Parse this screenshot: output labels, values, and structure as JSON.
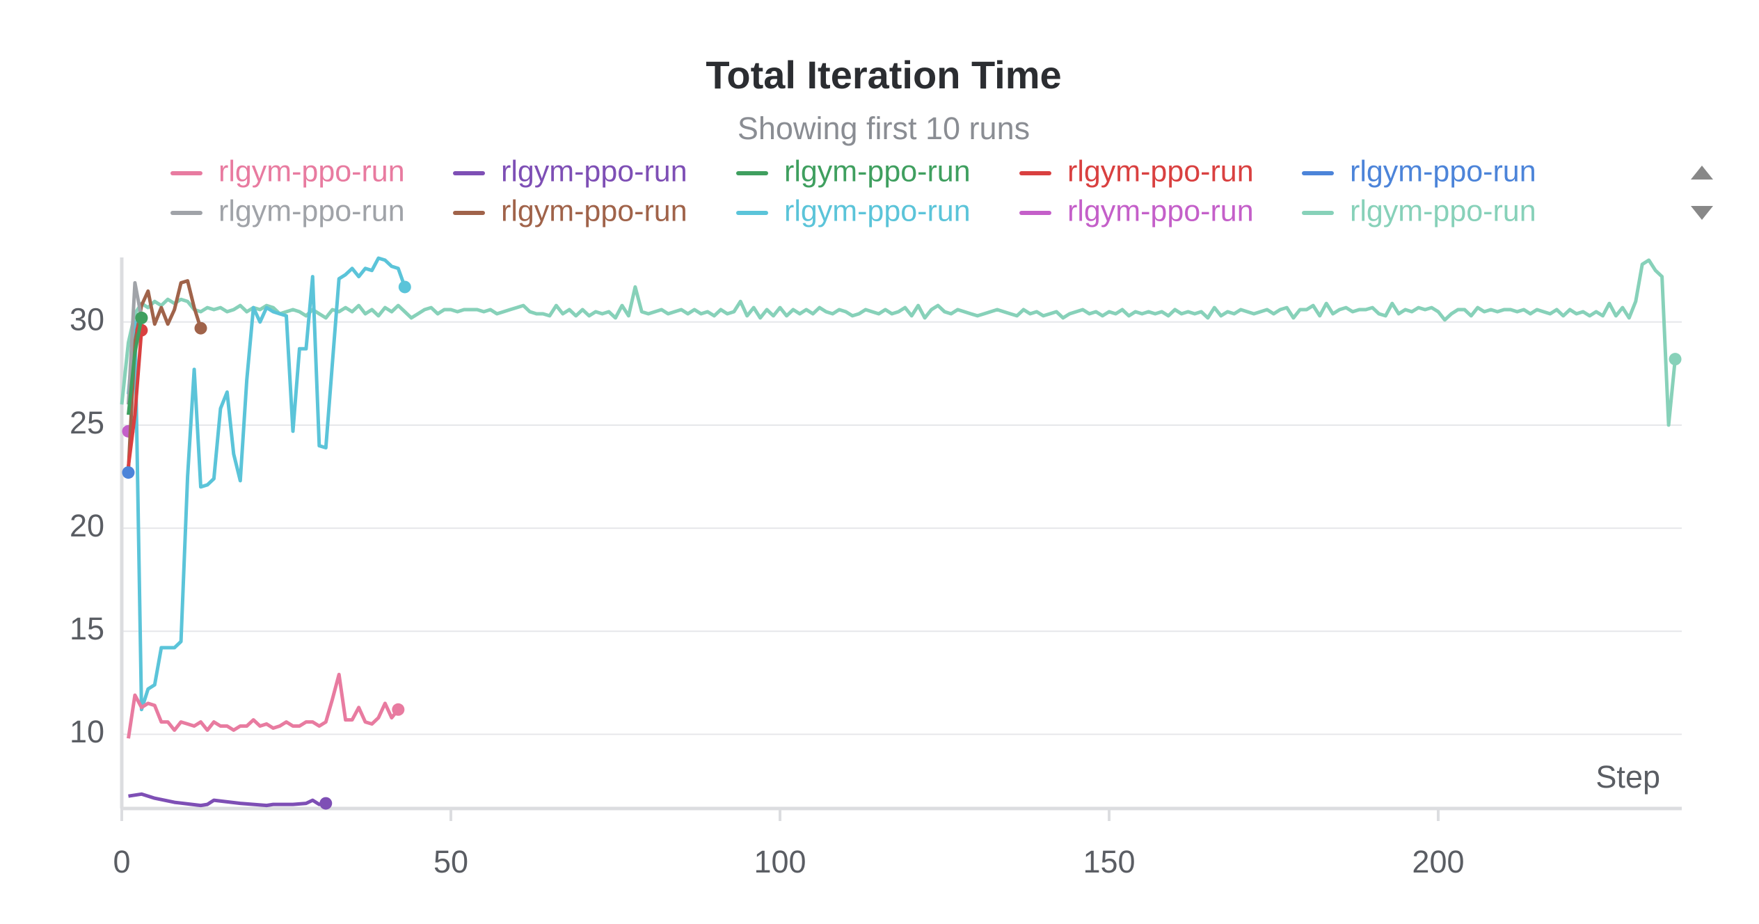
{
  "chart_data": {
    "type": "line",
    "title": "Total Iteration Time",
    "subtitle": "Showing first 10 runs",
    "x_label": "Step",
    "xlim": [
      0,
      237
    ],
    "ylim": [
      6.4,
      33.2
    ],
    "xticks": [
      0,
      50,
      100,
      150,
      200
    ],
    "yticks": [
      10,
      15,
      20,
      25,
      30
    ],
    "grid": true,
    "legend": "top",
    "series": [
      {
        "name": "rlgym-ppo-run",
        "color": "#e87ba0",
        "x": [
          1,
          2,
          3,
          4,
          5,
          6,
          7,
          8,
          9,
          10,
          11,
          12,
          13,
          14,
          15,
          16,
          17,
          18,
          19,
          20,
          21,
          22,
          23,
          24,
          25,
          26,
          27,
          28,
          29,
          30,
          31,
          32,
          33,
          34,
          35,
          36,
          37,
          38,
          39,
          40,
          41,
          42
        ],
        "values": [
          9.8,
          11.9,
          11.3,
          11.5,
          11.4,
          10.6,
          10.6,
          10.2,
          10.6,
          10.5,
          10.4,
          10.6,
          10.2,
          10.6,
          10.4,
          10.4,
          10.2,
          10.4,
          10.4,
          10.7,
          10.4,
          10.5,
          10.3,
          10.4,
          10.6,
          10.4,
          10.4,
          10.6,
          10.6,
          10.4,
          10.6,
          11.7,
          12.9,
          10.7,
          10.7,
          11.3,
          10.6,
          10.5,
          10.8,
          11.5,
          10.8,
          11.2
        ]
      },
      {
        "name": "rlgym-ppo-run",
        "color": "#7e4fb5",
        "x": [
          1,
          3,
          5,
          8,
          12,
          13,
          14,
          18,
          22,
          23,
          26,
          28,
          29,
          30,
          31
        ],
        "values": [
          7.0,
          7.1,
          6.9,
          6.7,
          6.55,
          6.6,
          6.8,
          6.65,
          6.55,
          6.6,
          6.6,
          6.65,
          6.8,
          6.6,
          6.65
        ]
      },
      {
        "name": "rlgym-ppo-run",
        "color": "#3f9f5f",
        "x": [
          1,
          2,
          3
        ],
        "values": [
          25.5,
          28.5,
          30.2
        ]
      },
      {
        "name": "rlgym-ppo-run",
        "color": "#d94040",
        "x": [
          1,
          2,
          3
        ],
        "values": [
          23.0,
          25.5,
          29.6
        ]
      },
      {
        "name": "rlgym-ppo-run",
        "color": "#4c84d9",
        "x": [
          1
        ],
        "values": [
          22.7
        ]
      },
      {
        "name": "rlgym-ppo-run",
        "color": "#a0a3a8",
        "x": [
          1,
          2,
          3
        ],
        "values": [
          26.0,
          31.9,
          30.2
        ]
      },
      {
        "name": "rlgym-ppo-run",
        "color": "#a0634a",
        "x": [
          1,
          2,
          3,
          4,
          5,
          6,
          7,
          8,
          9,
          10,
          11,
          12
        ],
        "values": [
          22.8,
          29.0,
          30.8,
          31.5,
          29.9,
          30.7,
          29.9,
          30.6,
          31.9,
          32.0,
          30.7,
          29.7
        ]
      },
      {
        "name": "rlgym-ppo-run",
        "color": "#5bc4d9",
        "x": [
          1,
          2,
          3,
          4,
          5,
          6,
          7,
          8,
          9,
          10,
          11,
          12,
          13,
          14,
          15,
          16,
          17,
          18,
          19,
          20,
          21,
          22,
          23,
          24,
          25,
          26,
          27,
          28,
          29,
          30,
          31,
          32,
          33,
          34,
          35,
          36,
          37,
          38,
          39,
          40,
          41,
          42,
          43
        ],
        "values": [
          26.5,
          30.0,
          11.2,
          12.2,
          12.4,
          14.2,
          14.2,
          14.2,
          14.5,
          22.5,
          27.7,
          22.0,
          22.1,
          22.4,
          25.8,
          26.6,
          23.6,
          22.3,
          27.2,
          30.7,
          30.0,
          30.7,
          30.5,
          30.4,
          30.3,
          24.7,
          28.7,
          28.7,
          32.2,
          24.0,
          23.9,
          28.0,
          32.1,
          32.3,
          32.6,
          32.2,
          32.6,
          32.5,
          33.1,
          33.0,
          32.7,
          32.6,
          31.7
        ]
      },
      {
        "name": "rlgym-ppo-run",
        "color": "#c45fc9",
        "x": [
          1
        ],
        "values": [
          24.7
        ]
      },
      {
        "name": "rlgym-ppo-run",
        "color": "#87d1b9",
        "x": [
          0,
          1,
          2,
          3,
          4,
          5,
          6,
          7,
          8,
          9,
          10,
          11,
          12,
          13,
          14,
          15,
          16,
          17,
          18,
          19,
          20,
          21,
          22,
          23,
          24,
          25,
          26,
          27,
          28,
          29,
          30,
          31,
          32,
          33,
          34,
          35,
          36,
          37,
          38,
          39,
          40,
          41,
          42,
          43,
          44,
          45,
          46,
          47,
          48,
          49,
          50,
          51,
          52,
          53,
          54,
          55,
          56,
          57,
          58,
          59,
          60,
          61,
          62,
          63,
          64,
          65,
          66,
          67,
          68,
          69,
          70,
          71,
          72,
          73,
          74,
          75,
          76,
          77,
          78,
          79,
          80,
          81,
          82,
          83,
          84,
          85,
          86,
          87,
          88,
          89,
          90,
          91,
          92,
          93,
          94,
          95,
          96,
          97,
          98,
          99,
          100,
          101,
          102,
          103,
          104,
          105,
          106,
          107,
          108,
          109,
          110,
          111,
          112,
          113,
          114,
          115,
          116,
          117,
          118,
          119,
          120,
          121,
          122,
          123,
          124,
          125,
          126,
          127,
          128,
          129,
          130,
          131,
          132,
          133,
          134,
          135,
          136,
          137,
          138,
          139,
          140,
          141,
          142,
          143,
          144,
          145,
          146,
          147,
          148,
          149,
          150,
          151,
          152,
          153,
          154,
          155,
          156,
          157,
          158,
          159,
          160,
          161,
          162,
          163,
          164,
          165,
          166,
          167,
          168,
          169,
          170,
          171,
          172,
          173,
          174,
          175,
          176,
          177,
          178,
          179,
          180,
          181,
          182,
          183,
          184,
          185,
          186,
          187,
          188,
          189,
          190,
          191,
          192,
          193,
          194,
          195,
          196,
          197,
          198,
          199,
          200,
          201,
          202,
          203,
          204,
          205,
          206,
          207,
          208,
          209,
          210,
          211,
          212,
          213,
          214,
          215,
          216,
          217,
          218,
          219,
          220,
          221,
          222,
          223,
          224,
          225,
          226,
          227,
          228,
          229,
          230,
          231,
          232,
          233,
          234,
          235,
          236
        ],
        "values": [
          26.0,
          29.0,
          30.4,
          30.9,
          30.7,
          31.0,
          30.8,
          31.1,
          30.9,
          31.1,
          31.0,
          30.6,
          30.5,
          30.7,
          30.6,
          30.7,
          30.5,
          30.6,
          30.8,
          30.5,
          30.7,
          30.6,
          30.8,
          30.7,
          30.4,
          30.5,
          30.6,
          30.5,
          30.3,
          30.6,
          30.4,
          30.2,
          30.6,
          30.5,
          30.7,
          30.5,
          30.8,
          30.4,
          30.6,
          30.3,
          30.7,
          30.5,
          30.8,
          30.5,
          30.2,
          30.4,
          30.6,
          30.7,
          30.4,
          30.6,
          30.6,
          30.5,
          30.6,
          30.6,
          30.6,
          30.5,
          30.6,
          30.4,
          30.5,
          30.6,
          30.7,
          30.8,
          30.5,
          30.4,
          30.4,
          30.3,
          30.8,
          30.4,
          30.6,
          30.3,
          30.6,
          30.3,
          30.5,
          30.4,
          30.5,
          30.2,
          30.8,
          30.3,
          31.7,
          30.5,
          30.4,
          30.5,
          30.6,
          30.4,
          30.5,
          30.6,
          30.4,
          30.6,
          30.4,
          30.5,
          30.3,
          30.6,
          30.4,
          30.5,
          31.0,
          30.3,
          30.7,
          30.2,
          30.6,
          30.3,
          30.7,
          30.3,
          30.6,
          30.4,
          30.6,
          30.4,
          30.7,
          30.5,
          30.4,
          30.6,
          30.5,
          30.3,
          30.4,
          30.6,
          30.5,
          30.4,
          30.6,
          30.4,
          30.5,
          30.7,
          30.3,
          30.8,
          30.2,
          30.6,
          30.8,
          30.5,
          30.4,
          30.6,
          30.5,
          30.4,
          30.3,
          30.4,
          30.5,
          30.6,
          30.5,
          30.4,
          30.3,
          30.6,
          30.4,
          30.5,
          30.3,
          30.4,
          30.5,
          30.2,
          30.4,
          30.5,
          30.6,
          30.4,
          30.5,
          30.3,
          30.5,
          30.4,
          30.6,
          30.3,
          30.5,
          30.4,
          30.5,
          30.4,
          30.5,
          30.3,
          30.6,
          30.4,
          30.5,
          30.4,
          30.5,
          30.2,
          30.7,
          30.3,
          30.5,
          30.4,
          30.6,
          30.5,
          30.4,
          30.5,
          30.6,
          30.4,
          30.6,
          30.7,
          30.2,
          30.6,
          30.6,
          30.8,
          30.3,
          30.9,
          30.4,
          30.6,
          30.7,
          30.5,
          30.6,
          30.6,
          30.7,
          30.4,
          30.3,
          30.9,
          30.4,
          30.6,
          30.5,
          30.7,
          30.6,
          30.7,
          30.5,
          30.1,
          30.4,
          30.6,
          30.6,
          30.3,
          30.7,
          30.5,
          30.6,
          30.5,
          30.6,
          30.6,
          30.5,
          30.6,
          30.4,
          30.6,
          30.5,
          30.4,
          30.6,
          30.3,
          30.6,
          30.4,
          30.5,
          30.3,
          30.5,
          30.3,
          30.9,
          30.3,
          30.7,
          30.2,
          31.0,
          32.8,
          33.0,
          32.5,
          32.2,
          25.0,
          28.2
        ]
      }
    ]
  }
}
